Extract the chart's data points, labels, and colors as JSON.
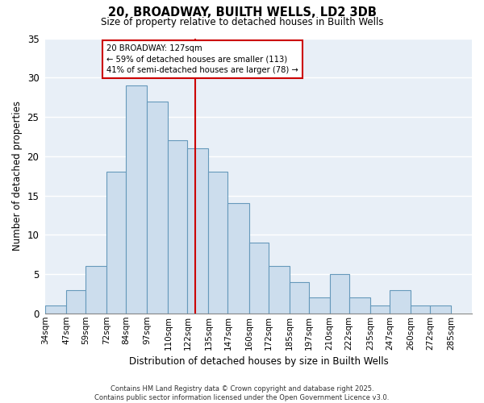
{
  "title": "20, BROADWAY, BUILTH WELLS, LD2 3DB",
  "subtitle": "Size of property relative to detached houses in Builth Wells",
  "xlabel": "Distribution of detached houses by size in Builth Wells",
  "ylabel": "Number of detached properties",
  "bin_labels": [
    "34sqm",
    "47sqm",
    "59sqm",
    "72sqm",
    "84sqm",
    "97sqm",
    "110sqm",
    "122sqm",
    "135sqm",
    "147sqm",
    "160sqm",
    "172sqm",
    "185sqm",
    "197sqm",
    "210sqm",
    "222sqm",
    "235sqm",
    "247sqm",
    "260sqm",
    "272sqm",
    "285sqm"
  ],
  "bin_edges": [
    34,
    47,
    59,
    72,
    84,
    97,
    110,
    122,
    135,
    147,
    160,
    172,
    185,
    197,
    210,
    222,
    235,
    247,
    260,
    272,
    285
  ],
  "counts": [
    1,
    3,
    6,
    18,
    29,
    27,
    22,
    21,
    18,
    14,
    9,
    6,
    4,
    2,
    5,
    2,
    1,
    3,
    1,
    1
  ],
  "bar_color": "#ccdded",
  "bar_edge_color": "#6699bb",
  "property_size": 127,
  "vline_color": "#cc0000",
  "annotation_title": "20 BROADWAY: 127sqm",
  "annotation_line1": "← 59% of detached houses are smaller (113)",
  "annotation_line2": "41% of semi-detached houses are larger (78) →",
  "annotation_box_color": "#ffffff",
  "annotation_border_color": "#cc0000",
  "ylim": [
    0,
    35
  ],
  "yticks": [
    0,
    5,
    10,
    15,
    20,
    25,
    30,
    35
  ],
  "footer1": "Contains HM Land Registry data © Crown copyright and database right 2025.",
  "footer2": "Contains public sector information licensed under the Open Government Licence v3.0.",
  "background_color": "#ffffff",
  "plot_bg_color": "#e8eff7",
  "grid_color": "#ffffff"
}
